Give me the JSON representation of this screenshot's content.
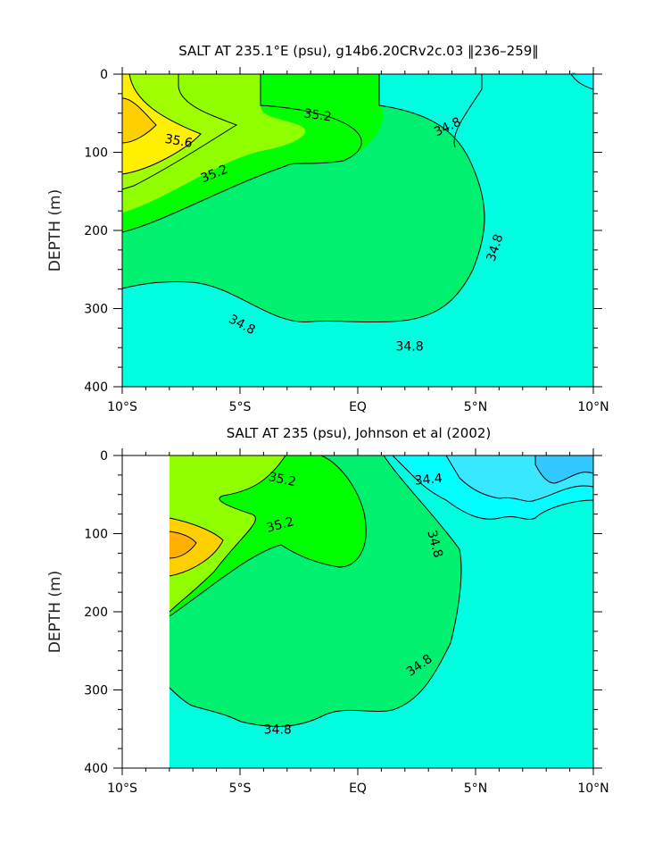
{
  "figure": {
    "background": "#ffffff",
    "colors": {
      "c344": "#30c8ff",
      "c346": "#38e8ff",
      "c348": "#00ffff",
      "c350": "#00ffe0",
      "c352": "#00f070",
      "c354": "#00ff00",
      "c356": "#90ff00",
      "c358": "#fff000",
      "c360": "#ffd000",
      "c362": "#ffb000",
      "line": "#000000"
    }
  },
  "chart_data": [
    {
      "type": "contour",
      "title": "SALT AT 235.1°E (psu), g14b6.20CRv2c.03 ‖236–259‖",
      "xlabel": "",
      "ylabel": "DEPTH (m)",
      "x_ticks": [
        "10°S",
        "5°S",
        "EQ",
        "5°N",
        "10°N"
      ],
      "x_values": [
        -10,
        -5,
        0,
        5,
        10
      ],
      "y_ticks": [
        "0",
        "100",
        "200",
        "300",
        "400"
      ],
      "y_values": [
        0,
        100,
        200,
        300,
        400
      ],
      "xlim": [
        -10,
        10
      ],
      "ylim": [
        400,
        0
      ],
      "background_value": "34.8–35.0",
      "contour_labels": [
        {
          "text": "35.2",
          "x": -1.7,
          "y": 52,
          "angle": 8
        },
        {
          "text": "35.6",
          "x": -7.6,
          "y": 85,
          "angle": 10
        },
        {
          "text": "35.2",
          "x": -6.1,
          "y": 127,
          "angle": -22
        },
        {
          "text": "34.8",
          "x": 3.8,
          "y": 67,
          "angle": -25
        },
        {
          "text": "34.8",
          "x": 5.8,
          "y": 222,
          "angle": -72
        },
        {
          "text": "34.8",
          "x": -4.9,
          "y": 320,
          "angle": 28
        },
        {
          "text": "34.8",
          "x": 2.2,
          "y": 348,
          "angle": 0
        }
      ]
    },
    {
      "type": "contour",
      "title": "SALT AT 235 (psu), Johnson et al (2002)",
      "xlabel": "",
      "ylabel": "DEPTH (m)",
      "x_ticks": [
        "10°S",
        "5°S",
        "EQ",
        "5°N",
        "10°N"
      ],
      "x_values": [
        -10,
        -5,
        0,
        5,
        10
      ],
      "y_ticks": [
        "0",
        "100",
        "200",
        "300",
        "400"
      ],
      "y_values": [
        0,
        100,
        200,
        300,
        400
      ],
      "xlim": [
        -10,
        10
      ],
      "ylim": [
        400,
        0
      ],
      "data_xlim": [
        -8,
        10
      ],
      "background_value": "34.8–35.0",
      "contour_labels": [
        {
          "text": "35.2",
          "x": -3.2,
          "y": 30,
          "angle": 12
        },
        {
          "text": "35.2",
          "x": -3.3,
          "y": 88,
          "angle": -15
        },
        {
          "text": "34.4",
          "x": 3.0,
          "y": 30,
          "angle": -5
        },
        {
          "text": "34.8",
          "x": 3.3,
          "y": 113,
          "angle": 75
        },
        {
          "text": "34.8",
          "x": 2.6,
          "y": 268,
          "angle": -35
        },
        {
          "text": "34.8",
          "x": -3.4,
          "y": 350,
          "angle": 0
        }
      ]
    }
  ]
}
